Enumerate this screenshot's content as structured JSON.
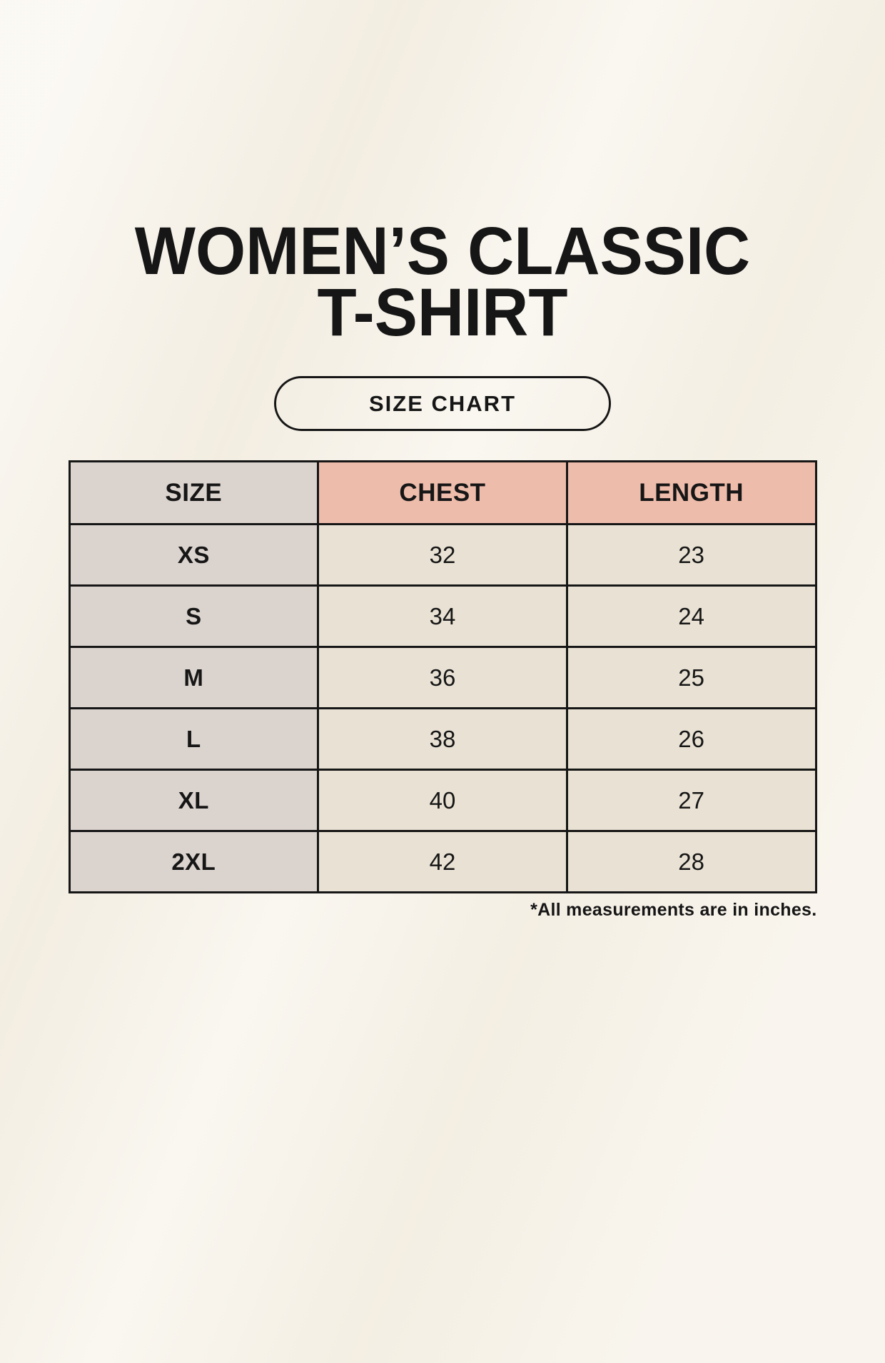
{
  "header": {
    "title_line1": "WOMEN’S CLASSIC",
    "title_line2": "T-SHIRT",
    "badge_label": "SIZE CHART"
  },
  "table": {
    "columns": [
      "SIZE",
      "CHEST",
      "LENGTH"
    ],
    "rows": [
      [
        "XS",
        "32",
        "23"
      ],
      [
        "S",
        "34",
        "24"
      ],
      [
        "M",
        "36",
        "25"
      ],
      [
        "L",
        "38",
        "26"
      ],
      [
        "XL",
        "40",
        "27"
      ],
      [
        "2XL",
        "42",
        "28"
      ]
    ],
    "footnote": "*All measurements are in inches."
  },
  "chart_data": {
    "type": "table",
    "title": "WOMEN’S CLASSIC T-SHIRT SIZE CHART",
    "columns": [
      "SIZE",
      "CHEST",
      "LENGTH"
    ],
    "rows": [
      {
        "size": "XS",
        "chest": 32,
        "length": 23
      },
      {
        "size": "S",
        "chest": 34,
        "length": 24
      },
      {
        "size": "M",
        "chest": 36,
        "length": 25
      },
      {
        "size": "L",
        "chest": 38,
        "length": 26
      },
      {
        "size": "XL",
        "chest": 40,
        "length": 27
      },
      {
        "size": "2XL",
        "chest": 42,
        "length": 28
      }
    ],
    "units": "inches"
  },
  "colors": {
    "background": "#f6f1e6",
    "size_column_bg": "#dbd3ce",
    "accent_header_bg": "#eebcab",
    "data_cell_bg": "#e9e2d4",
    "border": "#161616",
    "text": "#161616"
  }
}
